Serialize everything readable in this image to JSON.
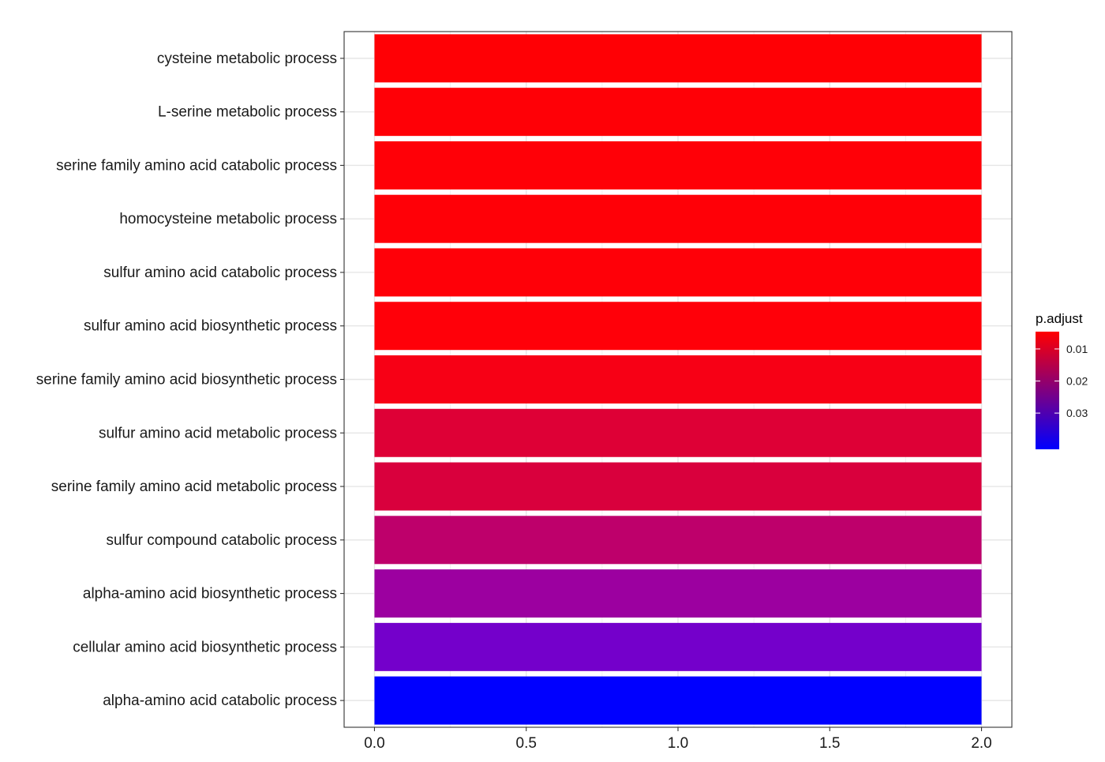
{
  "chart_data": {
    "type": "bar",
    "orientation": "horizontal",
    "categories": [
      "cysteine metabolic process",
      "L-serine metabolic process",
      "serine family amino acid catabolic process",
      "homocysteine metabolic process",
      "sulfur amino acid catabolic process",
      "sulfur amino acid biosynthetic process",
      "serine family amino acid biosynthetic process",
      "sulfur amino acid metabolic process",
      "serine family amino acid metabolic process",
      "sulfur compound catabolic process",
      "alpha-amino acid biosynthetic process",
      "cellular amino acid biosynthetic process",
      "alpha-amino acid catabolic process"
    ],
    "values": [
      2,
      2,
      2,
      2,
      2,
      2,
      2,
      2,
      2,
      2,
      2,
      2,
      2
    ],
    "p_adjust": [
      0.0046,
      0.0047,
      0.0048,
      0.0048,
      0.0049,
      0.005,
      0.0062,
      0.0137,
      0.0149,
      0.0206,
      0.0282,
      0.0345,
      0.0413
    ],
    "bar_colors": [
      "#FF0005",
      "#FF0006",
      "#FF0007",
      "#FF0007",
      "#FF0008",
      "#FF0009",
      "#F70015",
      "#DE0036",
      "#D9003D",
      "#BE006B",
      "#9C00A0",
      "#7400CB",
      "#0000FF"
    ],
    "xlim": [
      -0.1,
      2.1
    ],
    "xticks": [
      "0.0",
      "0.5",
      "1.0",
      "1.5",
      "2.0"
    ],
    "xtick_values": [
      0,
      0.5,
      1,
      1.5,
      2
    ],
    "xlabel": "",
    "ylabel": "",
    "title": "",
    "grid": true,
    "legend": {
      "title": "p.adjust",
      "placement": "right",
      "type": "colorbar",
      "range": [
        0.0046,
        0.0413
      ],
      "ticks": [
        "0.01",
        "0.02",
        "0.03"
      ],
      "tick_values": [
        0.01,
        0.02,
        0.03
      ],
      "color_low": "#FF0000",
      "color_high": "#0000FF"
    }
  }
}
